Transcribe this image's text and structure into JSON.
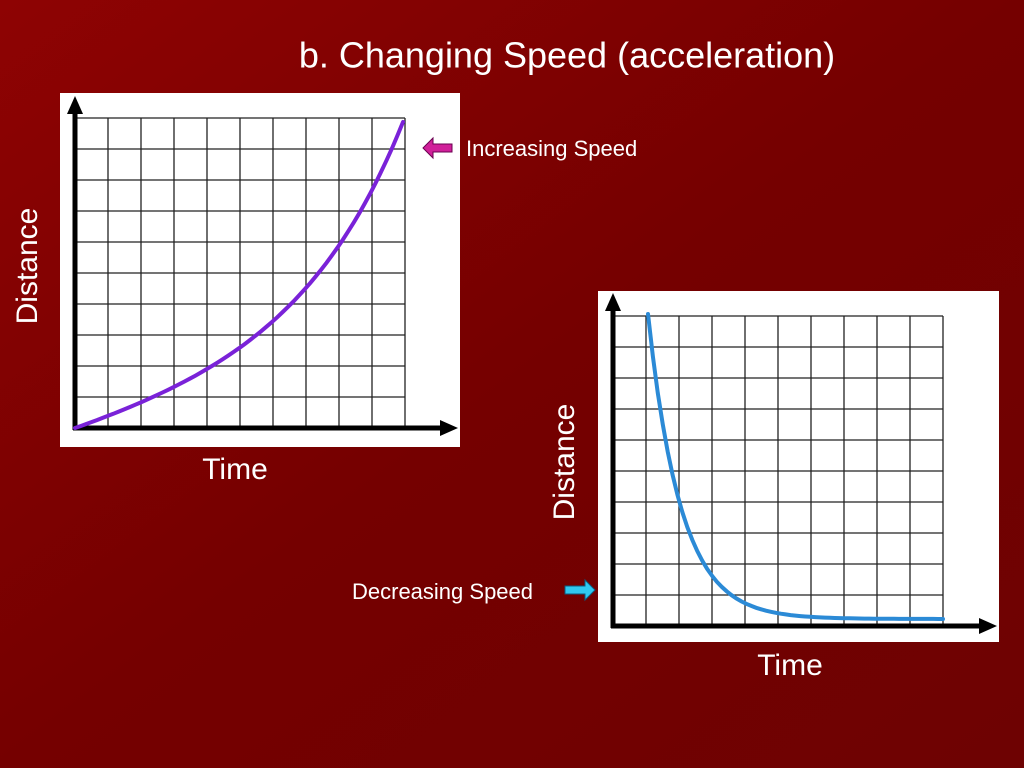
{
  "title": "b. Changing Speed (acceleration)",
  "graphs": [
    {
      "y_label": "Distance",
      "x_label": "Time",
      "annotation": "Increasing Speed"
    },
    {
      "y_label": "Distance",
      "x_label": "Time",
      "annotation": "Decreasing Speed"
    }
  ]
}
